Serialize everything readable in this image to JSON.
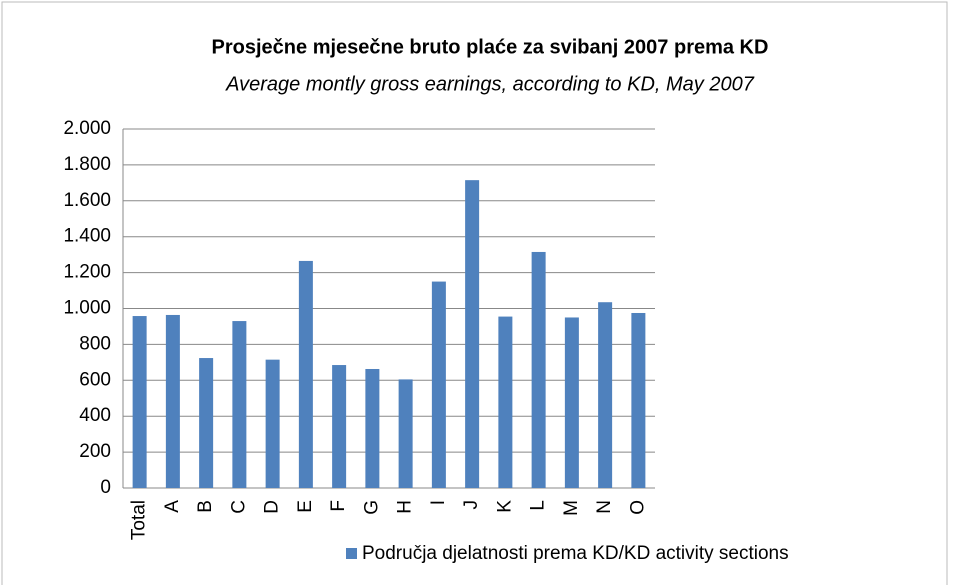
{
  "chart_data": {
    "type": "bar",
    "title": "Prosječne mjesečne bruto plaće za svibanj 2007 prema KD",
    "subtitle": "Average montly gross earnings, according to KD, May 2007",
    "categories": [
      "Total",
      "A",
      "B",
      "C",
      "D",
      "E",
      "F",
      "G",
      "H",
      "I",
      "J",
      "K",
      "L",
      "M",
      "N",
      "O"
    ],
    "series": [
      {
        "name": "Područja djelatnosti prema KD/KD activity sections",
        "color": "#4f81bd",
        "values": [
          958,
          964,
          724,
          930,
          715,
          1265,
          685,
          663,
          605,
          1150,
          1715,
          955,
          1315,
          950,
          1035,
          975
        ]
      }
    ],
    "ylim": [
      0,
      2000
    ],
    "yticks": [
      0,
      200,
      400,
      600,
      800,
      {
        "value": 1000,
        "label": "1.000"
      },
      {
        "value": 1200,
        "label": "1.200"
      },
      {
        "value": 1400,
        "label": "1.400"
      },
      {
        "value": 1600,
        "label": "1.600"
      },
      {
        "value": 1800,
        "label": "1.800"
      },
      {
        "value": 2000,
        "label": "2.000"
      }
    ],
    "grid": true
  }
}
